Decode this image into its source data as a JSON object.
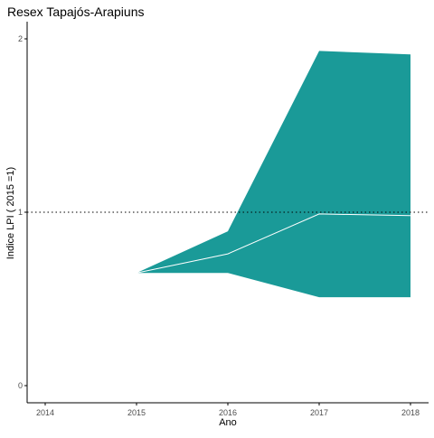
{
  "chart_data": {
    "type": "area",
    "title": "Resex Tapajós-Arapiuns",
    "xlabel": "Ano",
    "ylabel": "Indice LPI ( 2015 =1)",
    "x": [
      2015,
      2016,
      2017,
      2018
    ],
    "x_ticks": [
      2014,
      2015,
      2016,
      2017,
      2018
    ],
    "y_ticks": [
      0,
      1,
      2
    ],
    "xlim": [
      2014,
      2018
    ],
    "ylim": [
      0,
      2
    ],
    "reference_line": {
      "y": 1,
      "style": "dotted",
      "color": "#000000"
    },
    "series": [
      {
        "role": "lower",
        "values": [
          0.65,
          0.65,
          0.51,
          0.51
        ]
      },
      {
        "role": "upper",
        "values": [
          0.65,
          0.89,
          1.93,
          1.91
        ]
      },
      {
        "role": "index",
        "values": [
          0.65,
          0.76,
          0.99,
          0.98
        ]
      }
    ],
    "colors": {
      "band": "#1a9a98",
      "index_line": "#ffffff",
      "axis": "#000000",
      "tick_text": "#4d4d4d",
      "label_text": "#000000"
    },
    "grid": false,
    "legend": "none"
  }
}
